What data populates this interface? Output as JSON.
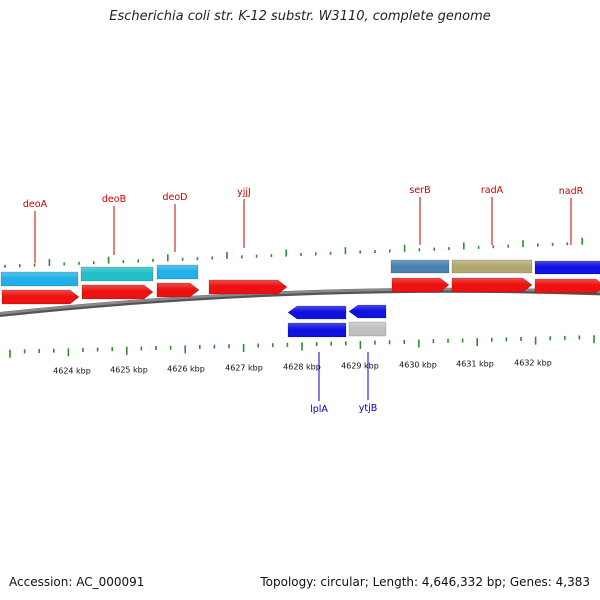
{
  "title": "Escherichia coli str. K-12 substr. W3110, complete genome",
  "accession": "Accession: AC_000091",
  "summary": "Topology: circular; Length: 4,646,332 bp; Genes: 4,383",
  "colors": {
    "gene_label_top": "#cc0000",
    "gene_label_bottom": "#0000cc",
    "tick": "#2e8b2e",
    "backbone": "#8a8a8a",
    "cds_red": "#ee1111",
    "cyan": "#22b0e8",
    "teal": "#22c0c8",
    "steel": "#4a80b0",
    "olive": "#b0a870",
    "blue": "#1010e0",
    "gray": "#c0c0c0"
  },
  "scale_labels": [
    "4624 kbp",
    "4625 kbp",
    "4626 kbp",
    "4627 kbp",
    "4628 kbp",
    "4629 kbp",
    "4630 kbp",
    "4631 kbp",
    "4632 kbp"
  ],
  "genes_top": [
    "deoA",
    "deoB",
    "deoD",
    "yjjJ",
    "serB",
    "radA",
    "nadR"
  ],
  "genes_bottom": [
    "lplA",
    "ytjB"
  ]
}
